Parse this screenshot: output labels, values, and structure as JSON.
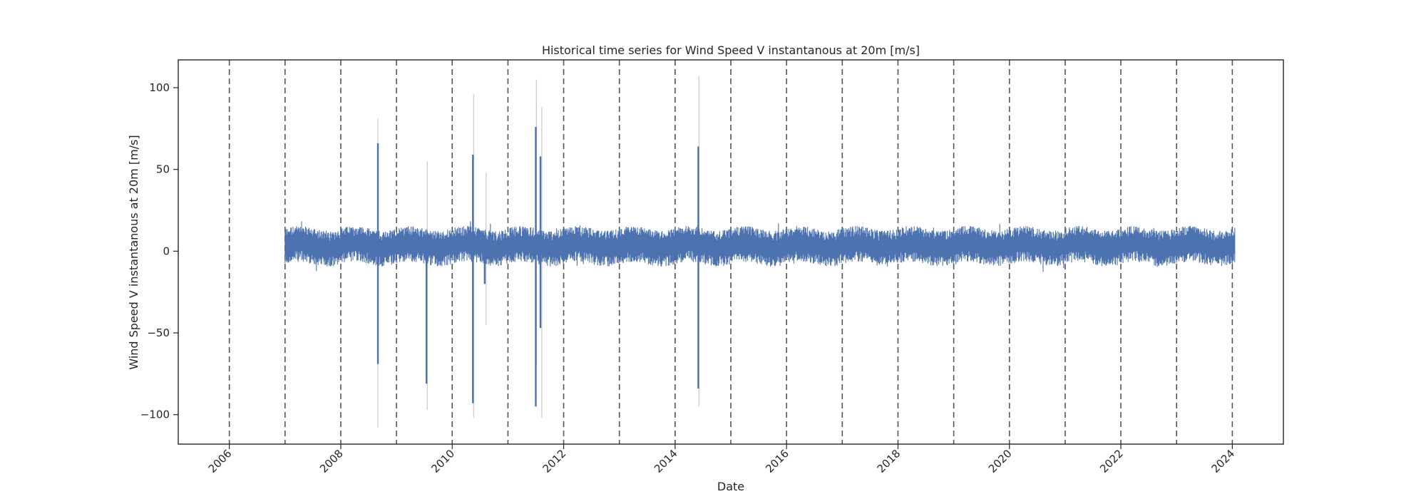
{
  "chart_data": {
    "type": "line",
    "title": "Historical time series for Wind Speed V instantanous at 20m [m/s]",
    "xlabel": "Date",
    "ylabel": "Wind Speed V instantanous at 20m [m/s]",
    "xlim": [
      "2005-02-01",
      "2024-12-01"
    ],
    "ylim": [
      -118,
      117
    ],
    "x_ticks": [
      "2006",
      "2008",
      "2010",
      "2012",
      "2014",
      "2016",
      "2018",
      "2020",
      "2022",
      "2024"
    ],
    "y_ticks": [
      100,
      50,
      0,
      -50,
      -100
    ],
    "vertical_reference_lines": [
      "2006-01-01",
      "2007-01-01",
      "2008-01-01",
      "2009-01-01",
      "2010-01-01",
      "2011-01-01",
      "2012-01-01",
      "2013-01-01",
      "2014-01-01",
      "2015-01-01",
      "2016-01-01",
      "2017-01-01",
      "2018-01-01",
      "2019-01-01",
      "2020-01-01",
      "2021-01-01",
      "2022-01-01",
      "2023-01-01",
      "2024-01-01"
    ],
    "grid": false,
    "series": [
      {
        "color": "#4c72b0",
        "data_start": "2007-01-01",
        "data_end": "2024-01-20",
        "typical_range": [
          -8,
          14
        ],
        "spikes": [
          {
            "date": "2008-09-01",
            "max": 66,
            "min": -69
          },
          {
            "date": "2009-07-15",
            "max": 10,
            "min": -81
          },
          {
            "date": "2010-05-15",
            "max": 59,
            "min": -93
          },
          {
            "date": "2010-08-01",
            "max": 10,
            "min": -20
          },
          {
            "date": "2011-07-01",
            "max": 76,
            "min": -95
          },
          {
            "date": "2011-08-01",
            "max": 58,
            "min": -47
          },
          {
            "date": "2014-06-01",
            "max": 64,
            "min": -84
          }
        ]
      },
      {
        "color": "#c8c8c8",
        "spikes": [
          {
            "date": "2008-09-01",
            "max": 81,
            "min": -108
          },
          {
            "date": "2009-07-20",
            "max": 55,
            "min": -97
          },
          {
            "date": "2010-05-20",
            "max": 96,
            "min": -102
          },
          {
            "date": "2010-08-10",
            "max": 48,
            "min": -45
          },
          {
            "date": "2011-07-05",
            "max": 105,
            "min": -70
          },
          {
            "date": "2011-08-10",
            "max": 88,
            "min": -102
          },
          {
            "date": "2014-06-05",
            "max": 107,
            "min": -95
          }
        ]
      }
    ]
  }
}
